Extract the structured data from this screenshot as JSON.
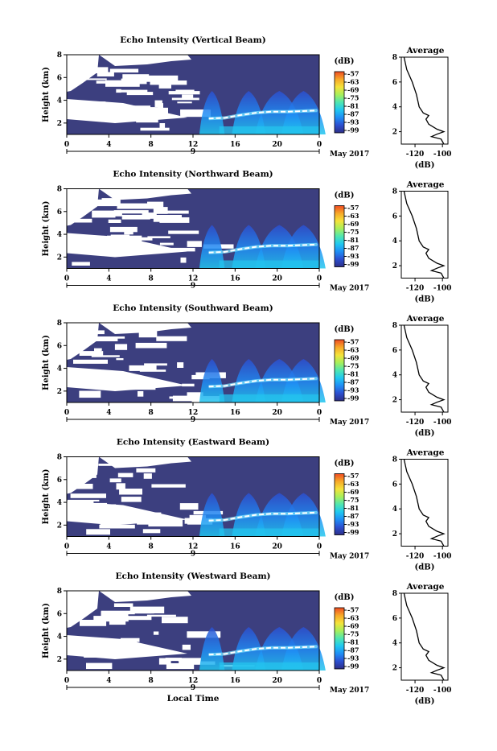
{
  "chart_data": [
    {
      "type": "heatmap",
      "title": "Echo Intensity (Vertical Beam)",
      "ylabel": "Height (km)",
      "y_ticks": [
        "2",
        "4",
        "6",
        "8"
      ],
      "ylim": [
        1,
        8
      ],
      "x_ticks": [
        "0",
        "4",
        "8",
        "12",
        "16",
        "20",
        "0"
      ],
      "xlim": [
        0,
        24
      ],
      "date_tick": "9",
      "date_label": "May 2017",
      "colorbar_unit": "(dB)",
      "colorbar_ticks": [
        "-57",
        "-63",
        "-69",
        "-75",
        "-81",
        "-87",
        "-93",
        "-99"
      ],
      "layer_height_km": [
        2.4,
        2.45,
        2.7,
        2.9,
        3.0,
        3.0,
        3.1
      ],
      "average_profile": {
        "title": "Average",
        "xlabel": "(dB)",
        "x_ticks": [
          "-120",
          "-100"
        ],
        "xlim": [
          -130,
          -96
        ],
        "y_ticks": [
          "2",
          "4",
          "6",
          "8"
        ],
        "ylim": [
          1,
          8
        ],
        "points": [
          [
            -99,
            1.0
          ],
          [
            -101,
            1.4
          ],
          [
            -108,
            1.6
          ],
          [
            -104,
            1.8
          ],
          [
            -99,
            2.0
          ],
          [
            -104,
            2.2
          ],
          [
            -110,
            2.6
          ],
          [
            -112,
            3.0
          ],
          [
            -110,
            3.3
          ],
          [
            -114,
            3.5
          ],
          [
            -117,
            4.0
          ],
          [
            -119,
            5.0
          ],
          [
            -122,
            6.0
          ],
          [
            -126,
            7.0
          ],
          [
            -128,
            8.0
          ]
        ]
      }
    },
    {
      "type": "heatmap",
      "title": "Echo Intensity (Northward Beam)",
      "ylabel": "Height (km)",
      "y_ticks": [
        "2",
        "4",
        "6",
        "8"
      ],
      "ylim": [
        1,
        8
      ],
      "x_ticks": [
        "0",
        "4",
        "8",
        "12",
        "16",
        "20",
        "0"
      ],
      "xlim": [
        0,
        24
      ],
      "date_tick": "9",
      "date_label": "May 2017",
      "colorbar_unit": "(dB)",
      "colorbar_ticks": [
        "-57",
        "-63",
        "-69",
        "-75",
        "-81",
        "-87",
        "-93",
        "-99"
      ],
      "layer_height_km": [
        2.4,
        2.45,
        2.7,
        2.9,
        3.0,
        3.0,
        3.1
      ],
      "average_profile": {
        "title": "Average",
        "xlabel": "(dB)",
        "x_ticks": [
          "-120",
          "-100"
        ],
        "xlim": [
          -130,
          -96
        ],
        "y_ticks": [
          "2",
          "4",
          "6",
          "8"
        ],
        "ylim": [
          1,
          8
        ],
        "points": [
          [
            -99,
            1.0
          ],
          [
            -101,
            1.4
          ],
          [
            -108,
            1.6
          ],
          [
            -104,
            1.8
          ],
          [
            -99,
            2.0
          ],
          [
            -104,
            2.2
          ],
          [
            -110,
            2.6
          ],
          [
            -112,
            3.0
          ],
          [
            -110,
            3.3
          ],
          [
            -114,
            3.5
          ],
          [
            -117,
            4.0
          ],
          [
            -119,
            5.0
          ],
          [
            -122,
            6.0
          ],
          [
            -126,
            7.0
          ],
          [
            -128,
            8.0
          ]
        ]
      }
    },
    {
      "type": "heatmap",
      "title": "Echo Intensity (Southward Beam)",
      "ylabel": "Height (km)",
      "y_ticks": [
        "2",
        "4",
        "6",
        "8"
      ],
      "ylim": [
        1,
        8
      ],
      "x_ticks": [
        "0",
        "4",
        "8",
        "12",
        "16",
        "20",
        "0"
      ],
      "xlim": [
        0,
        24
      ],
      "date_tick": "9",
      "date_label": "May 2017",
      "colorbar_unit": "(dB)",
      "colorbar_ticks": [
        "-57",
        "-63",
        "-69",
        "-75",
        "-81",
        "-87",
        "-93",
        "-99"
      ],
      "layer_height_km": [
        2.4,
        2.45,
        2.7,
        2.9,
        3.0,
        3.0,
        3.1
      ],
      "average_profile": {
        "title": "Average",
        "xlabel": "(dB)",
        "x_ticks": [
          "-120",
          "-100"
        ],
        "xlim": [
          -130,
          -96
        ],
        "y_ticks": [
          "2",
          "4",
          "6",
          "8"
        ],
        "ylim": [
          1,
          8
        ],
        "points": [
          [
            -99,
            1.0
          ],
          [
            -101,
            1.4
          ],
          [
            -108,
            1.6
          ],
          [
            -104,
            1.8
          ],
          [
            -99,
            2.0
          ],
          [
            -104,
            2.2
          ],
          [
            -110,
            2.6
          ],
          [
            -112,
            3.0
          ],
          [
            -110,
            3.3
          ],
          [
            -114,
            3.5
          ],
          [
            -117,
            4.0
          ],
          [
            -119,
            5.0
          ],
          [
            -122,
            6.0
          ],
          [
            -126,
            7.0
          ],
          [
            -128,
            8.0
          ]
        ]
      }
    },
    {
      "type": "heatmap",
      "title": "Echo Intensity (Eastward Beam)",
      "ylabel": "Height (km)",
      "y_ticks": [
        "2",
        "4",
        "6",
        "8"
      ],
      "ylim": [
        1,
        8
      ],
      "x_ticks": [
        "0",
        "4",
        "8",
        "12",
        "16",
        "20",
        "0"
      ],
      "xlim": [
        0,
        24
      ],
      "date_tick": "9",
      "date_label": "May 2017",
      "colorbar_unit": "(dB)",
      "colorbar_ticks": [
        "-57",
        "-63",
        "-69",
        "-75",
        "-81",
        "-87",
        "-93",
        "-99"
      ],
      "layer_height_km": [
        2.4,
        2.45,
        2.7,
        2.9,
        3.0,
        3.0,
        3.1
      ],
      "average_profile": {
        "title": "Average",
        "xlabel": "(dB)",
        "x_ticks": [
          "-120",
          "-100"
        ],
        "xlim": [
          -130,
          -96
        ],
        "y_ticks": [
          "2",
          "4",
          "6",
          "8"
        ],
        "ylim": [
          1,
          8
        ],
        "points": [
          [
            -99,
            1.0
          ],
          [
            -101,
            1.4
          ],
          [
            -108,
            1.6
          ],
          [
            -104,
            1.8
          ],
          [
            -99,
            2.0
          ],
          [
            -104,
            2.2
          ],
          [
            -110,
            2.6
          ],
          [
            -112,
            3.0
          ],
          [
            -110,
            3.3
          ],
          [
            -114,
            3.5
          ],
          [
            -117,
            4.0
          ],
          [
            -119,
            5.0
          ],
          [
            -122,
            6.0
          ],
          [
            -126,
            7.0
          ],
          [
            -128,
            8.0
          ]
        ]
      }
    },
    {
      "type": "heatmap",
      "title": "Echo Intensity (Westward Beam)",
      "ylabel": "Height (km)",
      "y_ticks": [
        "2",
        "4",
        "6",
        "8"
      ],
      "ylim": [
        1,
        8
      ],
      "x_ticks": [
        "0",
        "4",
        "8",
        "12",
        "16",
        "20",
        "0"
      ],
      "xlim": [
        0,
        24
      ],
      "date_tick": "9",
      "date_label": "May 2017",
      "colorbar_unit": "(dB)",
      "colorbar_ticks": [
        "-57",
        "-63",
        "-69",
        "-75",
        "-81",
        "-87",
        "-93",
        "-99"
      ],
      "layer_height_km": [
        2.4,
        2.45,
        2.7,
        2.9,
        3.0,
        3.0,
        3.1
      ],
      "average_profile": {
        "title": "Average",
        "xlabel": "(dB)",
        "x_ticks": [
          "-120",
          "-100"
        ],
        "xlim": [
          -130,
          -96
        ],
        "y_ticks": [
          "2",
          "4",
          "6",
          "8"
        ],
        "ylim": [
          1,
          8
        ],
        "points": [
          [
            -99,
            1.0
          ],
          [
            -101,
            1.4
          ],
          [
            -108,
            1.6
          ],
          [
            -104,
            1.8
          ],
          [
            -99,
            2.0
          ],
          [
            -104,
            2.2
          ],
          [
            -110,
            2.6
          ],
          [
            -112,
            3.0
          ],
          [
            -110,
            3.3
          ],
          [
            -114,
            3.5
          ],
          [
            -117,
            4.0
          ],
          [
            -119,
            5.0
          ],
          [
            -122,
            6.0
          ],
          [
            -126,
            7.0
          ],
          [
            -128,
            8.0
          ]
        ]
      }
    }
  ],
  "figure": {
    "xlabel": "Local Time"
  },
  "colors": {
    "background_echo": "#3c3f7f",
    "colormap": [
      "#2d2e87",
      "#2c4fd0",
      "#1f8ef5",
      "#20c8f0",
      "#50e6b0",
      "#a8ef5a",
      "#f5e23a",
      "#f7a828",
      "#ef4b22"
    ]
  }
}
